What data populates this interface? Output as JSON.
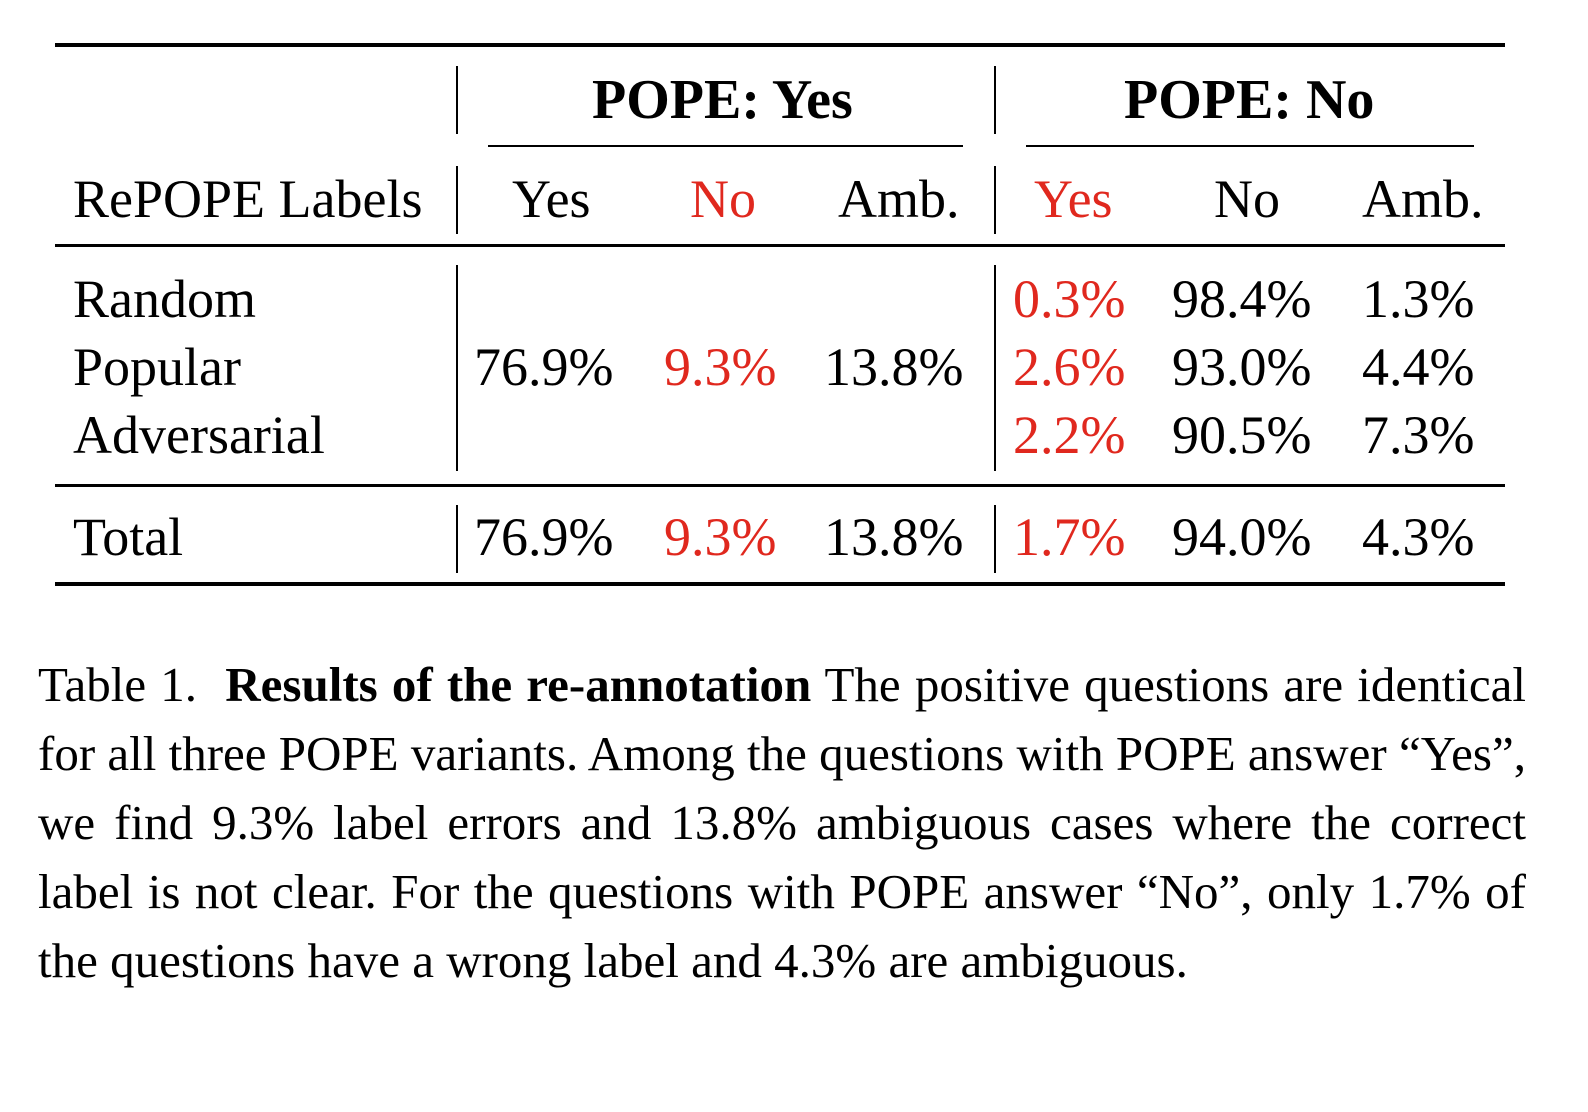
{
  "table": {
    "group_headers": {
      "yes": "POPE: Yes",
      "no": "POPE: No"
    },
    "column_headers": {
      "row_label": "RePOPE Labels",
      "yes_yes": "Yes",
      "yes_no": "No",
      "yes_amb": "Amb.",
      "no_yes": "Yes",
      "no_no": "No",
      "no_amb": "Amb."
    },
    "rows": [
      {
        "label": "Random",
        "no_yes": "0.3%",
        "no_no": "98.4%",
        "no_amb": "1.3%"
      },
      {
        "label": "Popular",
        "yes_yes": "76.9%",
        "yes_no": "9.3%",
        "yes_amb": "13.8%",
        "no_yes": "2.6%",
        "no_no": "93.0%",
        "no_amb": "4.4%"
      },
      {
        "label": "Adversarial",
        "no_yes": "2.2%",
        "no_no": "90.5%",
        "no_amb": "7.3%"
      }
    ],
    "total": {
      "label": "Total",
      "yes_yes": "76.9%",
      "yes_no": "9.3%",
      "yes_amb": "13.8%",
      "no_yes": "1.7%",
      "no_no": "94.0%",
      "no_amb": "4.3%"
    },
    "highlight_color": "#e0281e"
  },
  "caption": {
    "label": "Table 1.",
    "title": "Results of the re-annotation",
    "text": "The positive questions are identical for all three POPE variants. Among the questions with POPE answer “Yes”, we find 9.3% label errors and 13.8% ambiguous cases where the correct label is not clear. For the questions with POPE answer “No”, only 1.7% of the questions have a wrong label and 4.3% are ambiguous."
  }
}
